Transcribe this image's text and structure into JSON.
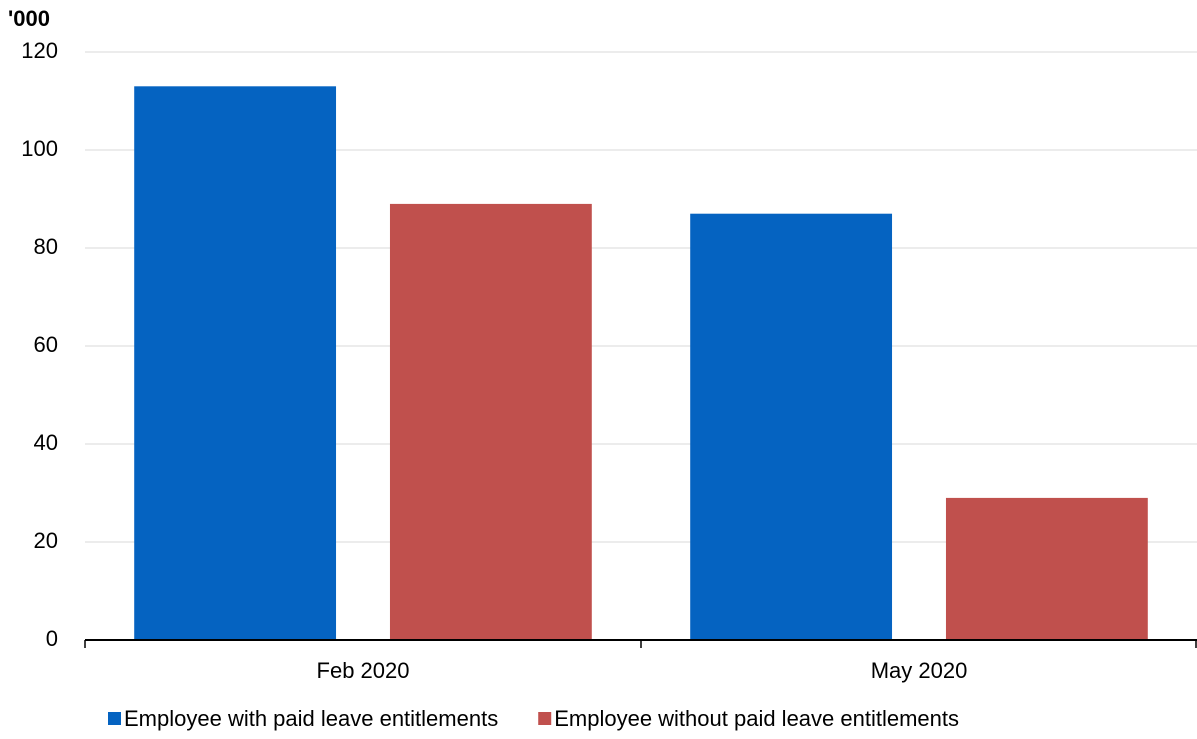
{
  "chart_data": {
    "type": "bar",
    "y_label": "'000",
    "categories": [
      "Feb 2020",
      "May 2020"
    ],
    "series": [
      {
        "name": "Employee with paid leave entitlements",
        "color": "#0563c1",
        "values": [
          113,
          87
        ]
      },
      {
        "name": "Employee without paid leave entitlements",
        "color": "#c0504d",
        "values": [
          89,
          29
        ]
      }
    ],
    "ylim": [
      0,
      120
    ],
    "yticks": [
      0,
      20,
      40,
      60,
      80,
      100,
      120
    ],
    "grid": true
  }
}
